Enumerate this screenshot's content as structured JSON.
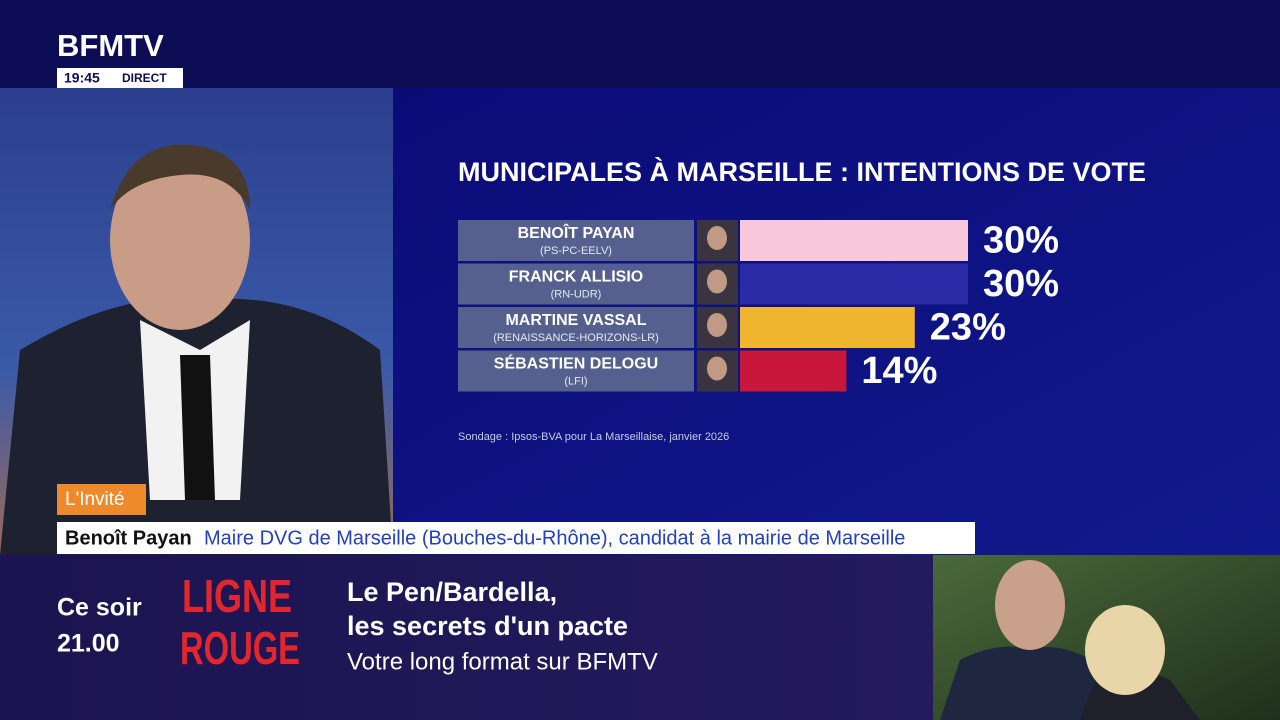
{
  "header": {
    "logo": "BFMTV",
    "time": "19:45",
    "live": "DIRECT"
  },
  "chart_data": {
    "type": "bar",
    "orientation": "horizontal",
    "title": "MUNICIPALES À MARSEILLE : INTENTIONS DE VOTE",
    "categories": [
      "BENOÎT PAYAN",
      "FRANCK ALLISIO",
      "MARTINE VASSAL",
      "SÉBASTIEN DELOGU"
    ],
    "parties": [
      "(PS-PC-EELV)",
      "(RN-UDR)",
      "(RENAISSANCE-HORIZONS-LR)",
      "(LFI)"
    ],
    "values": [
      30,
      30,
      23,
      14
    ],
    "value_labels": [
      "30%",
      "30%",
      "23%",
      "14%"
    ],
    "colors": [
      "#f8c8da",
      "#2b2aa6",
      "#efb52e",
      "#c9173b"
    ],
    "source": "Sondage : Ipsos-BVA pour La Marseillaise, janvier 2026"
  },
  "lower_third": {
    "tag": "L'Invité",
    "name": "Benoît Payan",
    "role": "Maire DVG de Marseille (Bouches-du-Rhône), candidat à la mairie de Marseille"
  },
  "promo": {
    "when": "Ce soir",
    "hour": "21.00",
    "show_line1": "LIGNE",
    "show_line2": "ROUGE",
    "headline1": "Le Pen/Bardella,",
    "headline2": "les secrets d'un pacte",
    "tagline": "Votre long format sur BFMTV"
  }
}
